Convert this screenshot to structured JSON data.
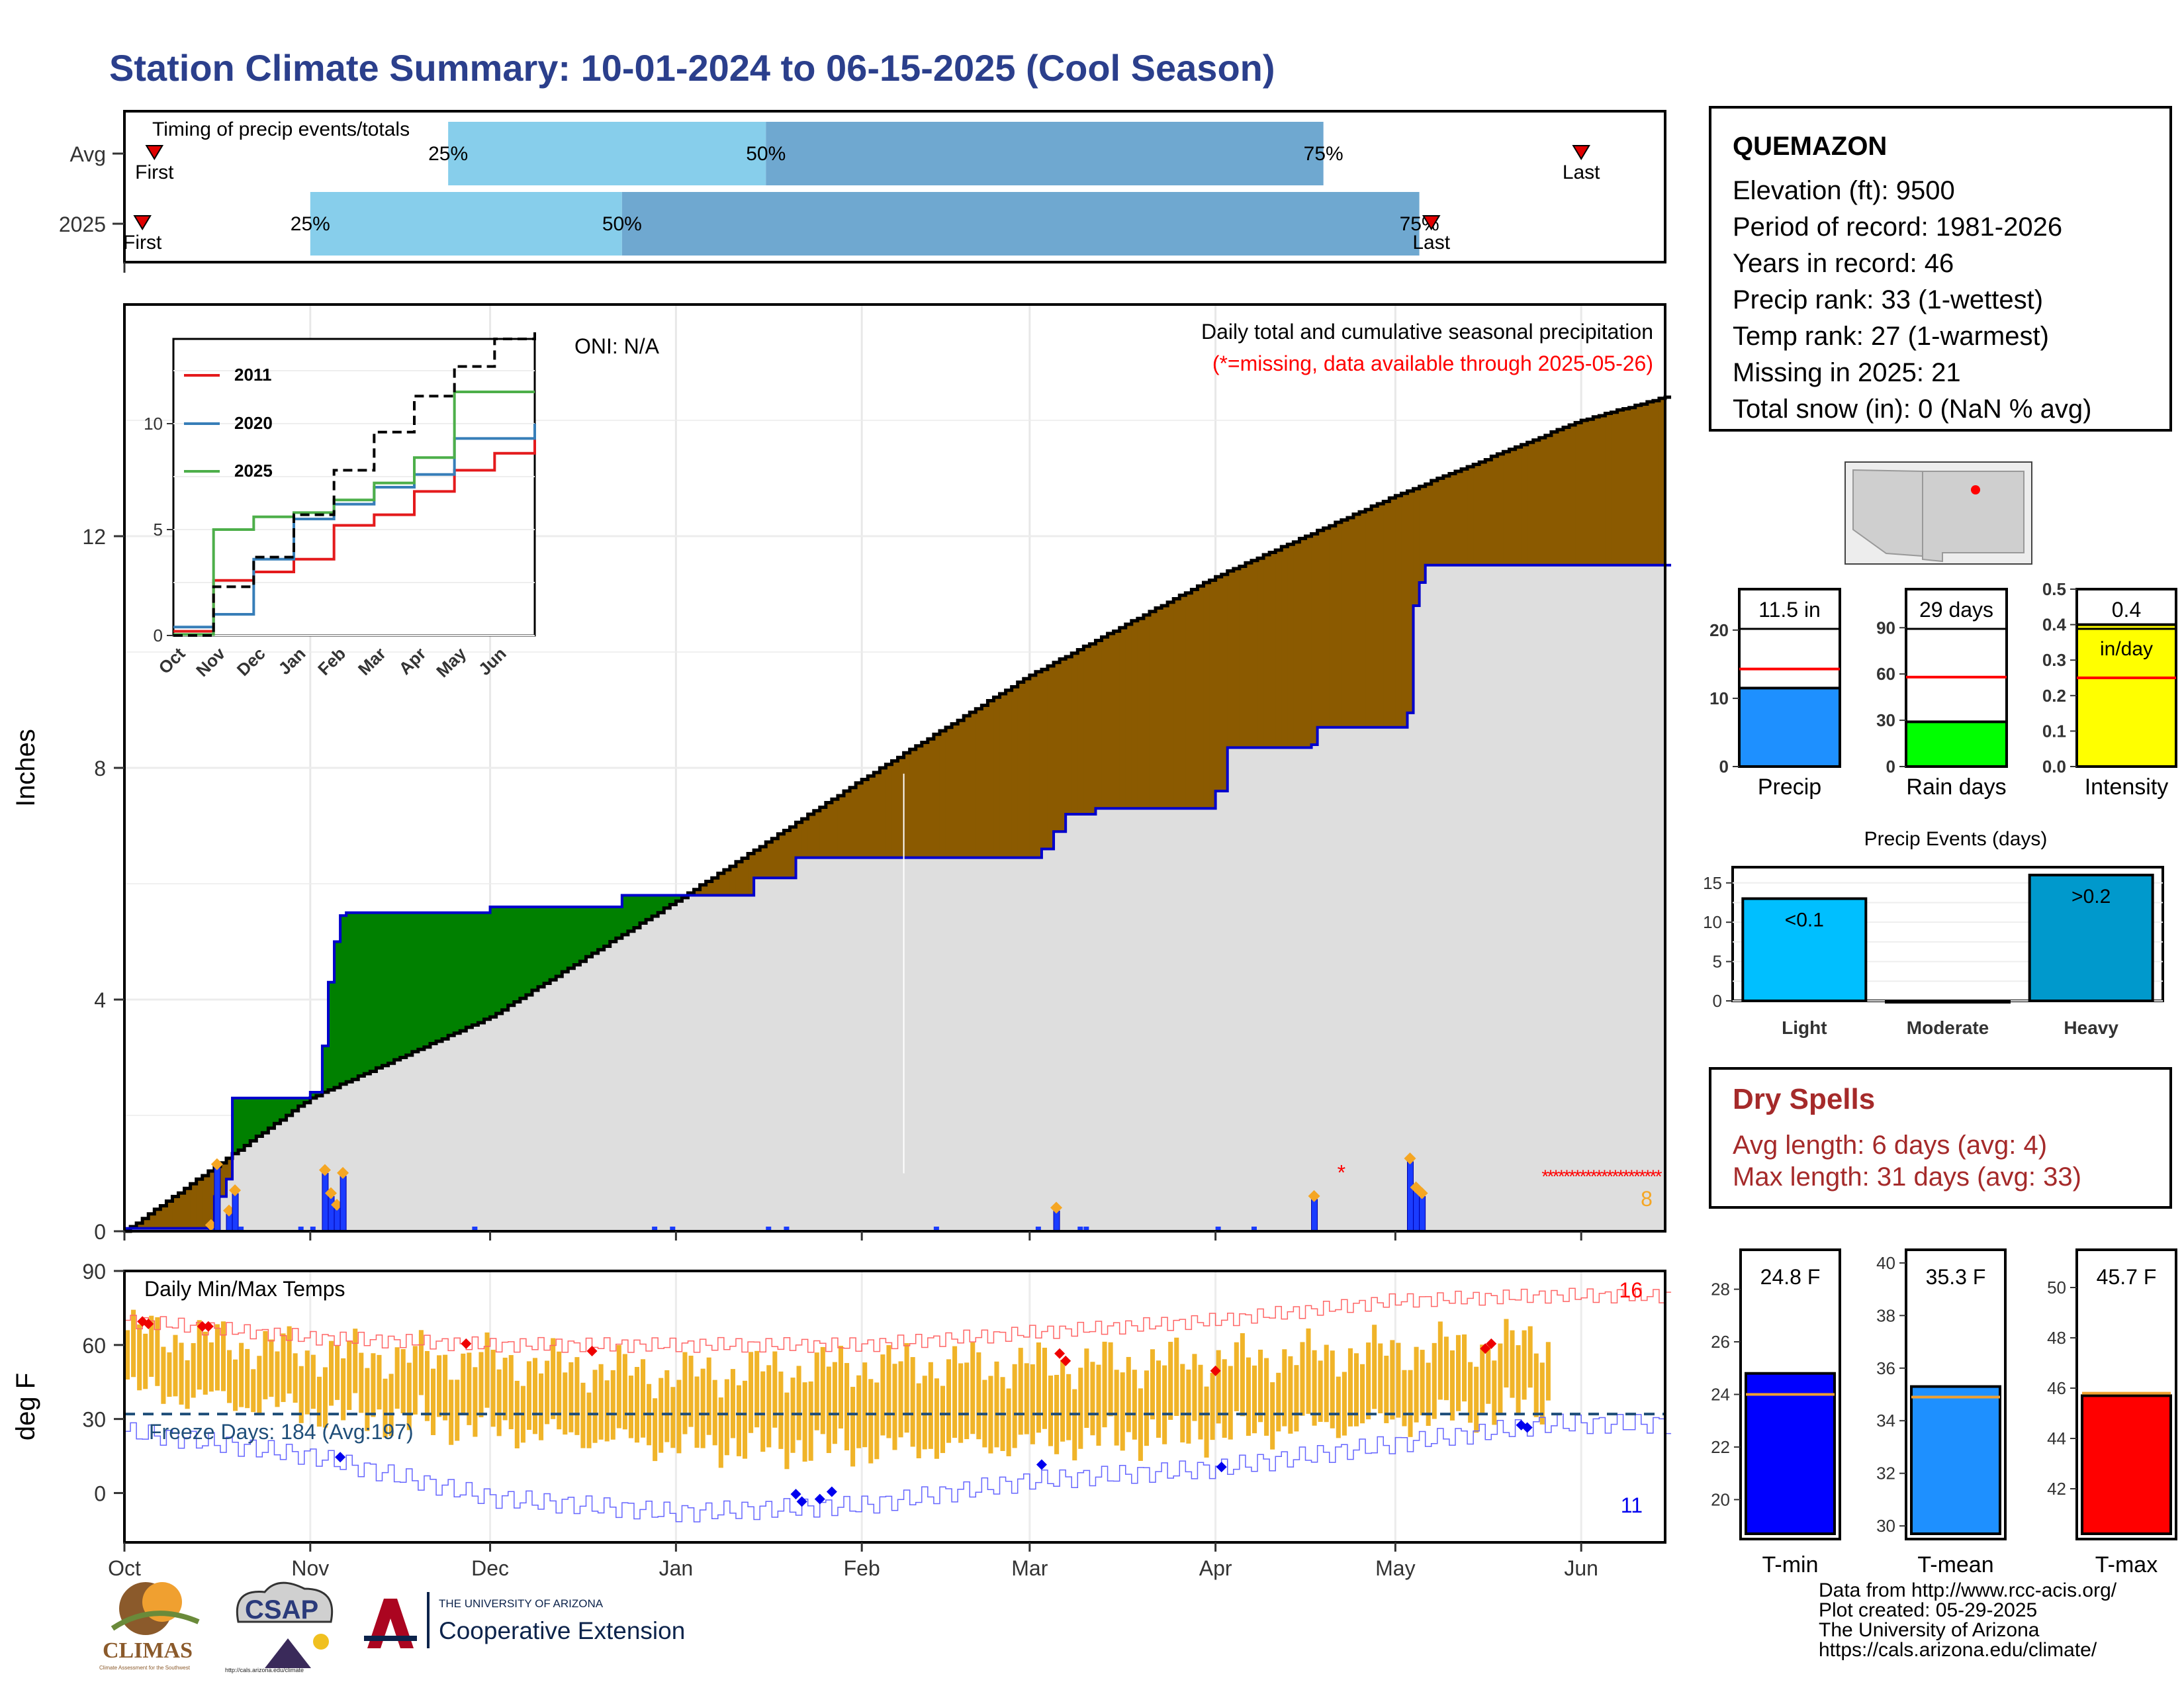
{
  "title": "Station Climate Summary: 10-01-2024 to 06-15-2025 (Cool Season)",
  "colors": {
    "title": "#2b3f8c",
    "cum_2025": "#8b5a00",
    "avg_line": "#000000",
    "above_fill": "#008000",
    "precip_bars": "#1a3cff",
    "temp_bar": "#f0b429",
    "min_line": "#0000ff",
    "max_line": "#ff3333",
    "freeze_line": "#1f4e79"
  },
  "timing": {
    "title": "Timing of precip events/totals",
    "rows": [
      "Avg",
      "2025"
    ],
    "first_label": "First",
    "last_label": "Last",
    "pct_labels": [
      "25%",
      "50%",
      "75%"
    ],
    "avg": {
      "first": "2024-10-06",
      "p25": "2024-11-24",
      "p50": "2025-01-16",
      "p75": "2025-04-19",
      "last": "2025-06-01"
    },
    "y2025": {
      "first": "2024-10-04",
      "p25": "2024-11-01",
      "p50": "2024-12-23",
      "p75": "2025-05-05",
      "last": "2025-05-07"
    }
  },
  "precip": {
    "ylabel": "Inches",
    "title": "Daily total and cumulative seasonal precipitation",
    "missing_note": "(*=missing, data available through 2025-05-26)",
    "oni": "ONI: N/A",
    "missing_count": "8",
    "missing_symbol": "*"
  },
  "temps": {
    "ylabel": "deg F",
    "title": "Daily Min/Max Temps",
    "freeze": "Freeze Days: 184 (Avg:197)",
    "max_count": "16",
    "min_count": "11"
  },
  "info": {
    "station": "QUEMAZON",
    "lines": [
      "Elevation (ft): 9500",
      "Period of record: 1981-2026",
      "Years in record: 46",
      "Precip rank: 33 (1-wettest)",
      "Temp rank: 27 (1-warmest)",
      "Missing in 2025: 21",
      "Total snow (in): 0 (NaN % avg)"
    ]
  },
  "dry": {
    "title": "Dry Spells",
    "avg": "Avg length: 6 days (avg: 4)",
    "max": "Max length: 31 days (avg: 33)"
  },
  "events_title": "Precip Events (days)",
  "credits": "Data from http://www.rcc-acis.org/\nPlot created: 05-29-2025\nThe University of Arizona\nhttps://cals.arizona.edu/climate/",
  "logos": {
    "climas": "CLIMAS",
    "climas_sub": "Climate Assessment for the Southwest",
    "csap": "CSAP",
    "csap_url": "http://cals.arizona.edu/climate",
    "ua_top": "THE UNIVERSITY OF ARIZONA",
    "ua_bottom": "Cooperative Extension"
  },
  "chart_data": [
    {
      "type": "area",
      "title": "Daily total and cumulative seasonal precipitation",
      "ylabel": "Inches",
      "xlim": [
        "2024-10-01",
        "2025-06-15"
      ],
      "ylim": [
        0,
        16
      ],
      "yticks": [
        0,
        4,
        8,
        12
      ],
      "xtick_labels": [
        "Oct",
        "Nov",
        "Dec",
        "Jan",
        "Feb",
        "Mar",
        "Apr",
        "May",
        "Jun"
      ],
      "series": [
        {
          "name": "avg",
          "x": [
            "2024-10-01",
            "2024-11-01",
            "2024-12-01",
            "2025-01-01",
            "2025-02-01",
            "2025-03-01",
            "2025-04-01",
            "2025-05-01",
            "2025-06-01",
            "2025-06-15"
          ],
          "values": [
            0,
            2.3,
            3.7,
            5.7,
            7.8,
            9.6,
            11.3,
            12.7,
            14.0,
            14.4
          ]
        },
        {
          "name": "2025",
          "x": [
            "2024-10-01",
            "2024-10-15",
            "2024-10-16",
            "2024-10-18",
            "2024-10-19",
            "2024-11-01",
            "2024-11-03",
            "2024-11-04",
            "2024-11-05",
            "2024-11-06",
            "2024-11-07",
            "2024-12-01",
            "2024-12-23",
            "2025-01-14",
            "2025-01-21",
            "2025-02-12",
            "2025-03-03",
            "2025-03-05",
            "2025-03-07",
            "2025-03-12",
            "2025-03-22",
            "2025-04-01",
            "2025-04-03",
            "2025-04-17",
            "2025-04-18",
            "2025-05-03",
            "2025-05-04",
            "2025-05-05",
            "2025-05-06",
            "2025-06-15"
          ],
          "values": [
            0.05,
            0.05,
            0.6,
            0.9,
            2.3,
            2.4,
            3.2,
            4.3,
            5.0,
            5.45,
            5.5,
            5.6,
            5.8,
            6.1,
            6.45,
            6.45,
            6.6,
            6.9,
            7.2,
            7.3,
            7.3,
            7.6,
            8.35,
            8.4,
            8.7,
            8.95,
            10.8,
            11.2,
            11.5,
            11.5
          ]
        },
        {
          "name": "daily",
          "x": [
            "2024-10-15",
            "2024-10-16",
            "2024-10-18",
            "2024-10-19",
            "2024-11-03",
            "2024-11-04",
            "2024-11-05",
            "2024-11-06",
            "2025-03-05",
            "2025-04-17",
            "2025-05-03",
            "2025-05-04",
            "2025-05-05"
          ],
          "values": [
            0.05,
            1.1,
            0.3,
            0.65,
            1.0,
            0.6,
            0.4,
            0.95,
            0.35,
            0.55,
            1.2,
            0.7,
            0.6
          ]
        }
      ]
    },
    {
      "type": "line",
      "title": "",
      "xtick_labels": [
        "Oct",
        "Nov",
        "Dec",
        "Jan",
        "Feb",
        "Mar",
        "Apr",
        "May",
        "Jun"
      ],
      "ylim": [
        0,
        14
      ],
      "yticks": [
        0,
        5,
        10
      ],
      "series": [
        {
          "name": "2011",
          "values": [
            0.2,
            2.6,
            3.0,
            3.6,
            5.2,
            5.7,
            6.8,
            7.8,
            8.6,
            9.3
          ]
        },
        {
          "name": "2020",
          "values": [
            0.4,
            1.0,
            3.6,
            5.5,
            6.2,
            7.0,
            7.6,
            9.3,
            9.3,
            10.0
          ]
        },
        {
          "name": "2025",
          "values": [
            0.05,
            5.0,
            5.6,
            5.8,
            6.4,
            7.2,
            8.4,
            11.5,
            11.5,
            11.5
          ]
        },
        {
          "name": "avg",
          "values": [
            0,
            2.3,
            3.7,
            5.7,
            7.8,
            9.6,
            11.3,
            12.7,
            14.0,
            14.4
          ]
        }
      ]
    },
    {
      "type": "bar",
      "title": "Daily Min/Max Temps",
      "ylabel": "deg F",
      "ylim": [
        -20,
        90
      ],
      "yticks": [
        0,
        30,
        60,
        90
      ],
      "x": [
        "2024-10-01",
        "2024-11-01",
        "2024-12-01",
        "2025-01-01",
        "2025-02-01",
        "2025-03-01",
        "2025-04-01",
        "2025-05-01",
        "2025-05-26"
      ],
      "series": [
        {
          "name": "tmax",
          "values": [
            66,
            57,
            54,
            48,
            52,
            52,
            54,
            58,
            62
          ]
        },
        {
          "name": "tmin",
          "values": [
            46,
            37,
            30,
            23,
            22,
            24,
            28,
            33,
            40
          ]
        },
        {
          "name": "record_max",
          "values": [
            70,
            63,
            60,
            60,
            60,
            65,
            70,
            78,
            80
          ]
        },
        {
          "name": "record_min",
          "values": [
            25,
            15,
            -2,
            -8,
            -5,
            5,
            10,
            20,
            28
          ]
        }
      ]
    },
    {
      "type": "bar",
      "categories": [
        "Precip"
      ],
      "values": [
        11.5
      ],
      "ylim": [
        0,
        26
      ],
      "yticks": [
        0,
        10,
        20
      ],
      "avg": 14.3,
      "label": "11.5 in"
    },
    {
      "type": "bar",
      "categories": [
        "Rain days"
      ],
      "values": [
        29
      ],
      "ylim": [
        0,
        115
      ],
      "yticks": [
        0,
        30,
        60,
        90
      ],
      "avg": 58,
      "label": "29 days"
    },
    {
      "type": "bar",
      "categories": [
        "Intensity"
      ],
      "values": [
        0.4
      ],
      "ylim": [
        0,
        0.5
      ],
      "yticks": [
        0.0,
        0.1,
        0.2,
        0.3,
        0.4,
        0.5
      ],
      "avg": 0.25,
      "label": "0.4",
      "unit": "in/day"
    },
    {
      "type": "bar",
      "title": "Precip Events (days)",
      "categories": [
        "Light",
        "Moderate",
        "Heavy"
      ],
      "values": [
        13,
        0,
        16
      ],
      "ylim": [
        0,
        17
      ],
      "yticks": [
        0,
        5,
        10,
        15
      ],
      "labels": [
        "<0.1",
        "",
        ">0.2"
      ]
    },
    {
      "type": "bar",
      "categories": [
        "T-min"
      ],
      "values": [
        24.8
      ],
      "ylim": [
        18.5,
        29.5
      ],
      "yticks": [
        20,
        22,
        24,
        26,
        28
      ],
      "avg": 24.0,
      "label": "24.8 F"
    },
    {
      "type": "bar",
      "categories": [
        "T-mean"
      ],
      "values": [
        35.3
      ],
      "ylim": [
        29.5,
        40.5
      ],
      "yticks": [
        30,
        32,
        34,
        36,
        38,
        40
      ],
      "avg": 34.9,
      "label": "35.3 F"
    },
    {
      "type": "bar",
      "categories": [
        "T-max"
      ],
      "values": [
        45.7
      ],
      "ylim": [
        40,
        51.5
      ],
      "yticks": [
        42,
        44,
        46,
        48,
        50
      ],
      "avg": 45.8,
      "label": "45.7 F"
    }
  ]
}
